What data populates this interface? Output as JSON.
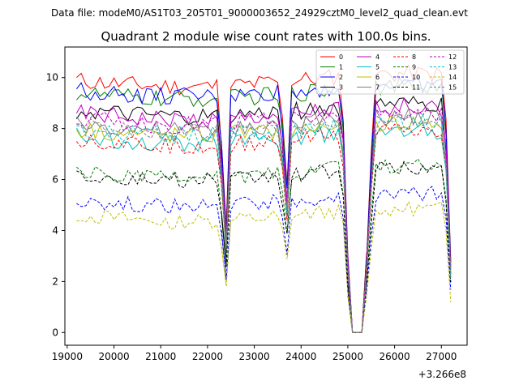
{
  "header": {
    "datafile": "Data file: modeM0/AS1T03_205T01_9000003652_24929cztM0_level2_quad_clean.evt"
  },
  "chart_data": {
    "type": "line",
    "title": "Quadrant 2 module wise count rates with 100.0s bins.",
    "xlabel": "",
    "ylabel": "",
    "x_offset_label": "+3.266e8",
    "xlim": [
      18950,
      27550
    ],
    "ylim": [
      -0.5,
      11.2
    ],
    "xticks": [
      19000,
      20000,
      21000,
      22000,
      23000,
      24000,
      25000,
      26000,
      27000
    ],
    "xtick_labels": [
      "19000",
      "20000",
      "21000",
      "22000",
      "23000",
      "24000",
      "25000",
      "26000",
      "27000"
    ],
    "yticks": [
      0,
      2,
      4,
      6,
      8,
      10
    ],
    "ytick_labels": [
      "0",
      "2",
      "4",
      "6",
      "8",
      "10"
    ],
    "legend_position": "top-right",
    "x": {
      "segments": [
        {
          "start": 19200,
          "end": 22400,
          "step": 100
        },
        {
          "start": 22300,
          "end": 25100,
          "step": 100
        },
        {
          "start": 25000,
          "end": 25400,
          "step": 100
        },
        {
          "start": 25400,
          "end": 27200,
          "step": 100
        }
      ]
    },
    "series": [
      {
        "name": "0",
        "color": "#ff0000",
        "dash": "solid",
        "base": 9.9,
        "amp": 0.35
      },
      {
        "name": "1",
        "color": "#008000",
        "dash": "solid",
        "base": 9.4,
        "amp": 0.35
      },
      {
        "name": "2",
        "color": "#0000ff",
        "dash": "solid",
        "base": 9.5,
        "amp": 0.35
      },
      {
        "name": "3",
        "color": "#000000",
        "dash": "solid",
        "base": 8.7,
        "amp": 0.35
      },
      {
        "name": "4",
        "color": "#bf00bf",
        "dash": "solid",
        "base": 8.6,
        "amp": 0.35
      },
      {
        "name": "5",
        "color": "#00bfbf",
        "dash": "solid",
        "base": 7.7,
        "amp": 0.35
      },
      {
        "name": "6",
        "color": "#bfbf00",
        "dash": "solid",
        "base": 8.0,
        "amp": 0.35
      },
      {
        "name": "7",
        "color": "#808080",
        "dash": "solid",
        "base": 8.2,
        "amp": 0.35
      },
      {
        "name": "8",
        "color": "#ff0000",
        "dash": "dashed",
        "base": 7.6,
        "amp": 0.35
      },
      {
        "name": "9",
        "color": "#008000",
        "dash": "dashed",
        "base": 6.3,
        "amp": 0.3
      },
      {
        "name": "10",
        "color": "#0000ff",
        "dash": "dashed",
        "base": 5.2,
        "amp": 0.3
      },
      {
        "name": "11",
        "color": "#000000",
        "dash": "dashed",
        "base": 6.2,
        "amp": 0.3
      },
      {
        "name": "12",
        "color": "#bf00bf",
        "dash": "dashed",
        "base": 8.4,
        "amp": 0.35
      },
      {
        "name": "13",
        "color": "#00bfbf",
        "dash": "dashed",
        "base": 8.0,
        "amp": 0.35
      },
      {
        "name": "14",
        "color": "#bfbf00",
        "dash": "dashed",
        "base": 4.6,
        "amp": 0.3
      },
      {
        "name": "15",
        "color": "#808080",
        "dash": "dashed",
        "base": 8.1,
        "amp": 0.35
      }
    ]
  }
}
